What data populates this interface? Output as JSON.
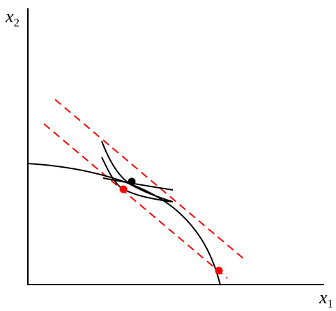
{
  "axes": {
    "x_label": "x",
    "x_subscript": "1",
    "y_label": "x",
    "y_subscript": "2"
  },
  "colors": {
    "axes": "#000000",
    "curves": "#000000",
    "budget_lines": "#ff0000",
    "black_point": "#000000",
    "red_points": "#ff0000"
  }
}
